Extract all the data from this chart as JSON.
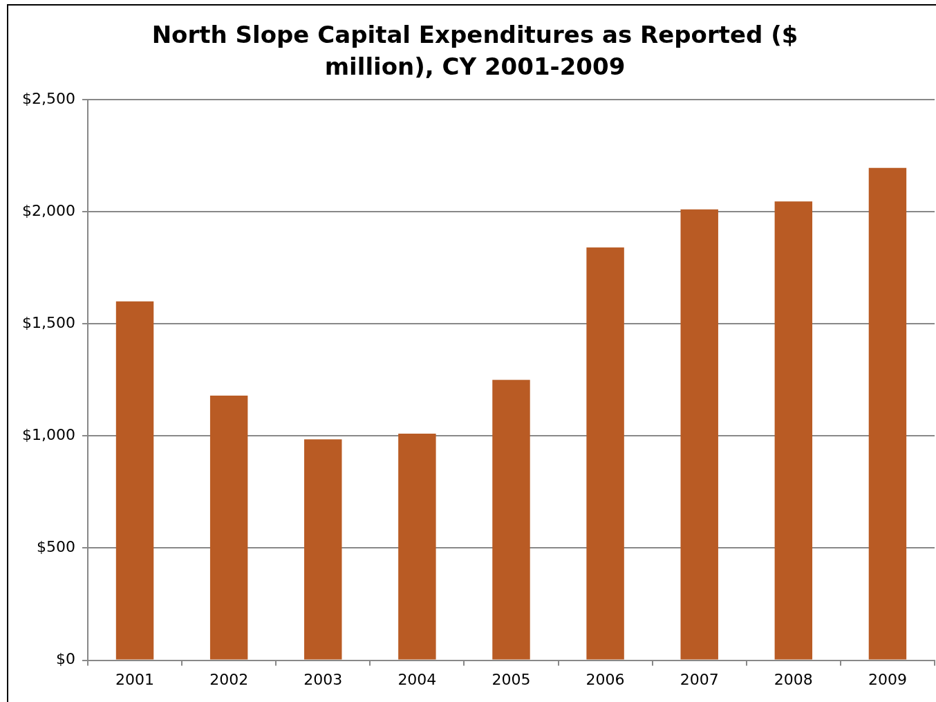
{
  "chart_data": {
    "type": "bar",
    "title": "North Slope Capital Expenditures as Reported ($ million), CY 2001-2009",
    "categories": [
      "2001",
      "2002",
      "2003",
      "2004",
      "2005",
      "2006",
      "2007",
      "2008",
      "2009"
    ],
    "values": [
      1600,
      1180,
      985,
      1010,
      1250,
      1840,
      2010,
      2045,
      2195
    ],
    "color": "#b95b24",
    "ylim": [
      0,
      2500
    ],
    "yticks": [
      {
        "value": 0,
        "label": "$0"
      },
      {
        "value": 500,
        "label": "$500"
      },
      {
        "value": 1000,
        "label": "$1,000"
      },
      {
        "value": 1500,
        "label": "$1,500"
      },
      {
        "value": 2000,
        "label": "$2,000"
      },
      {
        "value": 2500,
        "label": "$2,500"
      }
    ],
    "grid": "y",
    "legend": false
  }
}
